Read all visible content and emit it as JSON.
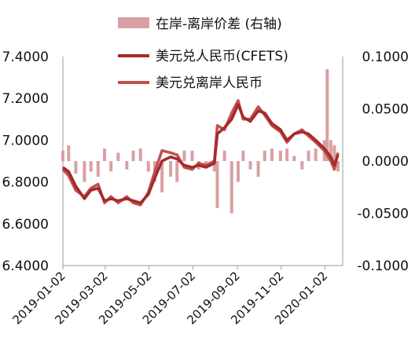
{
  "chart_data": {
    "type": "line",
    "left_axis": {
      "ylim": [
        6.4,
        7.4
      ],
      "ticks": [
        "6.4000",
        "6.6000",
        "6.8000",
        "7.0000",
        "7.2000",
        "7.4000"
      ]
    },
    "right_axis": {
      "ylim": [
        -0.1,
        0.1
      ],
      "ticks": [
        "-0.1000",
        "-0.0500",
        "0.0000",
        "0.0500",
        "0.1000"
      ]
    },
    "x_ticks": [
      "2019-01-02",
      "2019-03-02",
      "2019-05-02",
      "2019-07-02",
      "2019-09-02",
      "2019-11-02",
      "2020-01-02"
    ],
    "x_range": [
      "2019-01-02",
      "2020-01-20"
    ],
    "legend": {
      "position": "top",
      "entries": [
        "在岸-离岸价差 (右轴)",
        "美元兑人民币(CFETS)",
        "美元兑离岸人民币"
      ]
    },
    "colors": {
      "spread": "#d9a0a3",
      "cfets": "#a52a2a",
      "offshore": "#c0504d"
    },
    "series": [
      {
        "name": "美元兑人民币(CFETS)",
        "axis": "left",
        "points": [
          [
            "2019-01-02",
            6.87
          ],
          [
            "2019-01-10",
            6.85
          ],
          [
            "2019-01-20",
            6.78
          ],
          [
            "2019-02-01",
            6.72
          ],
          [
            "2019-02-10",
            6.76
          ],
          [
            "2019-02-20",
            6.77
          ],
          [
            "2019-03-01",
            6.71
          ],
          [
            "2019-03-10",
            6.72
          ],
          [
            "2019-03-20",
            6.71
          ],
          [
            "2019-04-01",
            6.72
          ],
          [
            "2019-04-10",
            6.71
          ],
          [
            "2019-04-20",
            6.7
          ],
          [
            "2019-05-01",
            6.74
          ],
          [
            "2019-05-10",
            6.82
          ],
          [
            "2019-05-20",
            6.9
          ],
          [
            "2019-06-01",
            6.92
          ],
          [
            "2019-06-10",
            6.91
          ],
          [
            "2019-06-20",
            6.88
          ],
          [
            "2019-07-01",
            6.87
          ],
          [
            "2019-07-10",
            6.88
          ],
          [
            "2019-07-20",
            6.87
          ],
          [
            "2019-08-01",
            6.89
          ],
          [
            "2019-08-05",
            7.03
          ],
          [
            "2019-08-15",
            7.06
          ],
          [
            "2019-08-25",
            7.1
          ],
          [
            "2019-09-03",
            7.17
          ],
          [
            "2019-09-10",
            7.11
          ],
          [
            "2019-09-20",
            7.09
          ],
          [
            "2019-10-01",
            7.14
          ],
          [
            "2019-10-10",
            7.13
          ],
          [
            "2019-10-20",
            7.08
          ],
          [
            "2019-11-01",
            7.05
          ],
          [
            "2019-11-10",
            7.0
          ],
          [
            "2019-11-20",
            7.03
          ],
          [
            "2019-12-01",
            7.04
          ],
          [
            "2019-12-10",
            7.03
          ],
          [
            "2019-12-20",
            7.0
          ],
          [
            "2020-01-01",
            6.96
          ],
          [
            "2020-01-10",
            6.92
          ],
          [
            "2020-01-15",
            6.88
          ],
          [
            "2020-01-20",
            6.93
          ]
        ]
      },
      {
        "name": "美元兑离岸人民币",
        "axis": "left",
        "points": [
          [
            "2019-01-02",
            6.86
          ],
          [
            "2019-01-10",
            6.83
          ],
          [
            "2019-01-20",
            6.76
          ],
          [
            "2019-02-01",
            6.73
          ],
          [
            "2019-02-10",
            6.77
          ],
          [
            "2019-02-20",
            6.79
          ],
          [
            "2019-03-01",
            6.7
          ],
          [
            "2019-03-10",
            6.73
          ],
          [
            "2019-03-20",
            6.7
          ],
          [
            "2019-04-01",
            6.73
          ],
          [
            "2019-04-10",
            6.7
          ],
          [
            "2019-04-20",
            6.69
          ],
          [
            "2019-05-01",
            6.75
          ],
          [
            "2019-05-10",
            6.85
          ],
          [
            "2019-05-20",
            6.95
          ],
          [
            "2019-06-01",
            6.94
          ],
          [
            "2019-06-10",
            6.93
          ],
          [
            "2019-06-20",
            6.87
          ],
          [
            "2019-07-01",
            6.86
          ],
          [
            "2019-07-10",
            6.89
          ],
          [
            "2019-07-20",
            6.88
          ],
          [
            "2019-08-01",
            6.9
          ],
          [
            "2019-08-05",
            7.07
          ],
          [
            "2019-08-15",
            7.05
          ],
          [
            "2019-08-25",
            7.13
          ],
          [
            "2019-09-03",
            7.19
          ],
          [
            "2019-09-10",
            7.1
          ],
          [
            "2019-09-20",
            7.1
          ],
          [
            "2019-10-01",
            7.16
          ],
          [
            "2019-10-10",
            7.12
          ],
          [
            "2019-10-20",
            7.07
          ],
          [
            "2019-11-01",
            7.04
          ],
          [
            "2019-11-10",
            6.99
          ],
          [
            "2019-11-20",
            7.03
          ],
          [
            "2019-12-01",
            7.05
          ],
          [
            "2019-12-10",
            7.02
          ],
          [
            "2019-12-20",
            6.99
          ],
          [
            "2020-01-01",
            6.95
          ],
          [
            "2020-01-10",
            6.9
          ],
          [
            "2020-01-15",
            6.86
          ],
          [
            "2020-01-20",
            6.94
          ]
        ]
      },
      {
        "name": "在岸-离岸价差 (右轴)",
        "axis": "right",
        "kind": "bar",
        "points": [
          [
            "2019-01-02",
            0.01
          ],
          [
            "2019-01-10",
            0.015
          ],
          [
            "2019-01-20",
            -0.012
          ],
          [
            "2019-02-01",
            -0.02
          ],
          [
            "2019-02-10",
            -0.01
          ],
          [
            "2019-02-20",
            -0.015
          ],
          [
            "2019-03-01",
            0.012
          ],
          [
            "2019-03-10",
            -0.01
          ],
          [
            "2019-03-20",
            0.008
          ],
          [
            "2019-04-01",
            -0.008
          ],
          [
            "2019-04-10",
            0.01
          ],
          [
            "2019-04-20",
            0.012
          ],
          [
            "2019-05-01",
            -0.01
          ],
          [
            "2019-05-10",
            -0.02
          ],
          [
            "2019-05-20",
            -0.03
          ],
          [
            "2019-06-01",
            -0.015
          ],
          [
            "2019-06-10",
            -0.02
          ],
          [
            "2019-06-20",
            0.01
          ],
          [
            "2019-07-01",
            0.01
          ],
          [
            "2019-07-10",
            -0.008
          ],
          [
            "2019-07-20",
            -0.006
          ],
          [
            "2019-08-01",
            -0.01
          ],
          [
            "2019-08-05",
            -0.045
          ],
          [
            "2019-08-15",
            0.01
          ],
          [
            "2019-08-25",
            -0.05
          ],
          [
            "2019-09-03",
            -0.02
          ],
          [
            "2019-09-10",
            0.01
          ],
          [
            "2019-09-20",
            -0.008
          ],
          [
            "2019-10-01",
            -0.015
          ],
          [
            "2019-10-10",
            0.01
          ],
          [
            "2019-10-20",
            0.012
          ],
          [
            "2019-11-01",
            0.01
          ],
          [
            "2019-11-10",
            0.012
          ],
          [
            "2019-11-20",
            0.005
          ],
          [
            "2019-12-01",
            -0.008
          ],
          [
            "2019-12-10",
            0.01
          ],
          [
            "2019-12-20",
            0.012
          ],
          [
            "2020-01-01",
            0.02
          ],
          [
            "2020-01-05",
            0.088
          ],
          [
            "2020-01-10",
            0.02
          ],
          [
            "2020-01-15",
            0.015
          ],
          [
            "2020-01-20",
            -0.01
          ]
        ]
      }
    ]
  }
}
